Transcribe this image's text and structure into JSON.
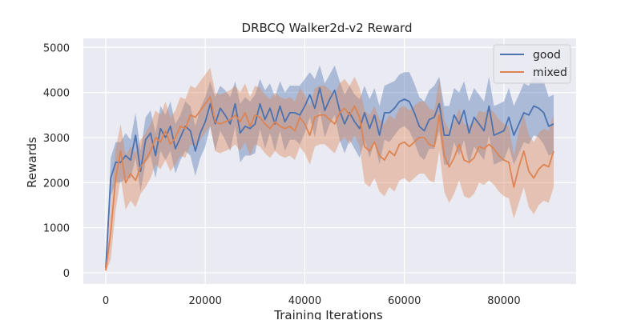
{
  "chart_data": {
    "type": "line",
    "title": "DRBCQ Walker2d-v2 Reward",
    "xlabel": "Training Iterations",
    "ylabel": "Rewards",
    "xlim": [
      -4500,
      94500
    ],
    "ylim": [
      -250,
      5200
    ],
    "xticks": [
      0,
      20000,
      40000,
      60000,
      80000
    ],
    "yticks": [
      0,
      1000,
      2000,
      3000,
      4000,
      5000
    ],
    "grid": true,
    "legend": "top-right",
    "x": [
      0,
      1000,
      2000,
      3000,
      4000,
      5000,
      6000,
      7000,
      8000,
      9000,
      10000,
      11000,
      12000,
      13000,
      14000,
      15000,
      16000,
      17000,
      18000,
      19000,
      20000,
      21000,
      22000,
      23000,
      24000,
      25000,
      26000,
      27000,
      28000,
      29000,
      30000,
      31000,
      32000,
      33000,
      34000,
      35000,
      36000,
      37000,
      38000,
      39000,
      40000,
      41000,
      42000,
      43000,
      44000,
      45000,
      46000,
      47000,
      48000,
      49000,
      50000,
      51000,
      52000,
      53000,
      54000,
      55000,
      56000,
      57000,
      58000,
      59000,
      60000,
      61000,
      62000,
      63000,
      64000,
      65000,
      66000,
      67000,
      68000,
      69000,
      70000,
      71000,
      72000,
      73000,
      74000,
      75000,
      76000,
      77000,
      78000,
      79000,
      80000,
      81000,
      82000,
      83000,
      84000,
      85000,
      86000,
      87000,
      88000,
      89000,
      90000
    ],
    "series": [
      {
        "name": "good",
        "color": "#4c72b0",
        "values": [
          100,
          2100,
          2450,
          2450,
          2600,
          2500,
          3050,
          2250,
          2950,
          3100,
          2600,
          3200,
          3000,
          3250,
          2750,
          3000,
          3250,
          3150,
          2700,
          3100,
          3350,
          3750,
          3300,
          3650,
          3500,
          3300,
          3750,
          3100,
          3250,
          3200,
          3300,
          3750,
          3400,
          3650,
          3300,
          3700,
          3350,
          3550,
          3550,
          3500,
          3700,
          3950,
          3650,
          4100,
          3600,
          3850,
          4050,
          3600,
          3300,
          3550,
          3350,
          3200,
          3550,
          3200,
          3500,
          3050,
          3550,
          3550,
          3650,
          3800,
          3850,
          3800,
          3550,
          3250,
          3150,
          3400,
          3450,
          3750,
          3050,
          3050,
          3500,
          3300,
          3600,
          3100,
          3450,
          3300,
          3150,
          3700,
          3050,
          3100,
          3150,
          3450,
          3050,
          3300,
          3550,
          3500,
          3700,
          3650,
          3550,
          3250,
          3300
        ]
      },
      {
        "name": "mixed",
        "color": "#dd8452",
        "values": [
          50,
          900,
          2100,
          2700,
          2000,
          2200,
          2050,
          2350,
          2500,
          2700,
          3000,
          2900,
          3150,
          2850,
          3000,
          3250,
          3200,
          3500,
          3450,
          3600,
          3750,
          3900,
          3350,
          3300,
          3350,
          3400,
          3500,
          3350,
          3550,
          3250,
          3500,
          3450,
          3300,
          3200,
          3350,
          3250,
          3200,
          3250,
          3150,
          3450,
          3300,
          3050,
          3450,
          3500,
          3500,
          3400,
          3300,
          3550,
          3650,
          3500,
          3700,
          3450,
          2800,
          2700,
          2900,
          2600,
          2500,
          2700,
          2600,
          2850,
          2900,
          2800,
          2900,
          3000,
          3000,
          2850,
          2800,
          3500,
          2600,
          2350,
          2550,
          2850,
          2500,
          2450,
          2550,
          2800,
          2750,
          2850,
          2750,
          2600,
          2500,
          2450,
          1900,
          2350,
          2700,
          2250,
          2100,
          2300,
          2400,
          2350,
          2700
        ]
      }
    ],
    "bands": [
      {
        "series": "good",
        "lower": [
          50,
          1700,
          2000,
          2000,
          2100,
          2100,
          2550,
          1800,
          2450,
          2600,
          2100,
          2700,
          2500,
          2700,
          2200,
          2500,
          2700,
          2600,
          2150,
          2550,
          2800,
          3250,
          2700,
          3150,
          2950,
          2700,
          3250,
          2450,
          2600,
          2600,
          2650,
          3200,
          2750,
          3100,
          2700,
          3150,
          2700,
          2950,
          2950,
          2850,
          3100,
          3450,
          3000,
          3600,
          3000,
          3300,
          3500,
          2950,
          2650,
          2950,
          2750,
          2550,
          2950,
          2550,
          2900,
          2400,
          2950,
          2900,
          3050,
          3200,
          3250,
          3150,
          2900,
          2600,
          2500,
          2750,
          2750,
          3150,
          2400,
          2400,
          2900,
          2600,
          2950,
          2400,
          2800,
          2650,
          2500,
          3050,
          2400,
          2450,
          2500,
          2800,
          2400,
          2650,
          2900,
          2850,
          3050,
          3000,
          2850,
          2600,
          2650
        ],
        "upper": [
          150,
          2550,
          2900,
          2900,
          3100,
          2950,
          3550,
          2700,
          3450,
          3600,
          3100,
          3700,
          3500,
          3800,
          3300,
          3500,
          3800,
          3700,
          3250,
          3650,
          3900,
          4250,
          3900,
          4150,
          4050,
          3900,
          4250,
          3750,
          3900,
          3800,
          3950,
          4300,
          4050,
          4200,
          3900,
          4250,
          4000,
          4150,
          4150,
          4150,
          4300,
          4450,
          4300,
          4600,
          4200,
          4400,
          4600,
          4250,
          3950,
          4150,
          3950,
          3850,
          4150,
          3850,
          4100,
          3700,
          4150,
          4200,
          4250,
          4400,
          4450,
          4450,
          4200,
          3900,
          3800,
          4050,
          4150,
          4350,
          3700,
          3700,
          4100,
          4000,
          4250,
          3800,
          4100,
          3950,
          3800,
          4350,
          3700,
          3750,
          3800,
          4100,
          3700,
          3950,
          4200,
          4150,
          4350,
          4300,
          4250,
          3900,
          3950
        ]
      },
      {
        "series": "mixed",
        "lower": [
          0,
          300,
          1400,
          2100,
          1400,
          1600,
          1450,
          1750,
          1900,
          2100,
          2400,
          2300,
          2500,
          2250,
          2400,
          2600,
          2550,
          2850,
          2800,
          2950,
          3100,
          3250,
          2700,
          2650,
          2700,
          2750,
          2850,
          2700,
          2900,
          2600,
          2850,
          2800,
          2650,
          2550,
          2700,
          2600,
          2550,
          2600,
          2500,
          2800,
          2650,
          2400,
          2800,
          2850,
          2850,
          2750,
          2650,
          2900,
          3000,
          2850,
          3050,
          2800,
          2000,
          1900,
          2100,
          1800,
          1700,
          1900,
          1800,
          2050,
          2100,
          2000,
          2100,
          2200,
          2200,
          2050,
          2000,
          2700,
          1800,
          1550,
          1750,
          2050,
          1700,
          1650,
          1750,
          2000,
          1950,
          2050,
          1950,
          1800,
          1700,
          1650,
          1200,
          1550,
          1900,
          1450,
          1300,
          1500,
          1600,
          1550,
          1900
        ],
        "upper": [
          100,
          1500,
          2750,
          3300,
          2600,
          2800,
          2650,
          2950,
          3100,
          3300,
          3600,
          3500,
          3800,
          3450,
          3600,
          3900,
          3850,
          4150,
          4100,
          4250,
          4400,
          4550,
          4000,
          3950,
          4000,
          4050,
          4150,
          4000,
          4200,
          3900,
          4150,
          4100,
          3950,
          3850,
          4000,
          3900,
          3850,
          3900,
          3800,
          4100,
          3950,
          3700,
          4100,
          4150,
          4150,
          4050,
          3950,
          4200,
          4300,
          4150,
          4350,
          4100,
          3600,
          3500,
          3700,
          3400,
          3300,
          3500,
          3400,
          3650,
          3700,
          3600,
          3700,
          3800,
          3800,
          3650,
          3600,
          4300,
          3400,
          3150,
          3350,
          3650,
          3300,
          3250,
          3350,
          3600,
          3550,
          3650,
          3550,
          3400,
          3300,
          3250,
          2600,
          3150,
          3500,
          3050,
          2900,
          3100,
          3200,
          3150,
          3500
        ]
      }
    ]
  }
}
